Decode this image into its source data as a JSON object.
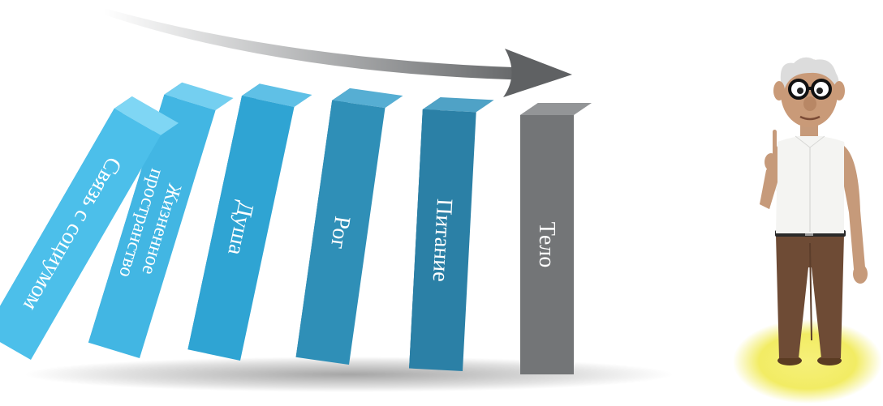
{
  "dominoes": [
    {
      "label": "Связь с социумом",
      "front": "#4cbfea",
      "side": "#2f9ccd",
      "top": "#7fd6f4"
    },
    {
      "label": "Жизненное пространство",
      "front": "#42b6e3",
      "side": "#2a93c2",
      "top": "#74cff0"
    },
    {
      "label": "Душа",
      "front": "#2fa4d3",
      "side": "#1f82b1",
      "top": "#5fc0e6"
    },
    {
      "label": "Рог",
      "front": "#2f8fb7",
      "side": "#226f94",
      "top": "#56aed3"
    },
    {
      "label": "Питание",
      "front": "#2b80a6",
      "side": "#1c6285",
      "top": "#4fa2c6"
    },
    {
      "label": "Тело",
      "front": "#737577",
      "side": "#5b5d5f",
      "top": "#939597"
    }
  ],
  "figure": "cartoon-old-man-pointing-up",
  "colors": {
    "arrow": "#6f7173",
    "spotlight": "#f3ee6a"
  }
}
